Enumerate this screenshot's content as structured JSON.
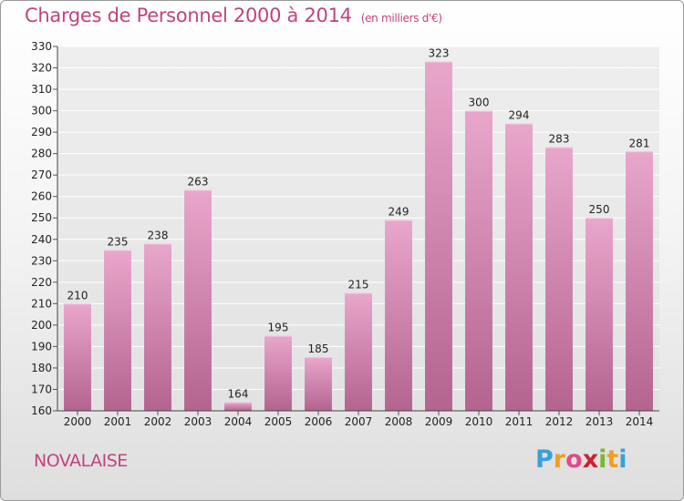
{
  "chart_data": {
    "type": "bar",
    "title": "Charges de Personnel 2000 à 2014",
    "subtitle": "(en milliers d'€)",
    "categories": [
      "2000",
      "2001",
      "2002",
      "2003",
      "2004",
      "2005",
      "2006",
      "2007",
      "2008",
      "2009",
      "2010",
      "2011",
      "2012",
      "2013",
      "2014"
    ],
    "values": [
      210,
      235,
      238,
      263,
      164,
      195,
      185,
      215,
      249,
      323,
      300,
      294,
      283,
      250,
      281
    ],
    "yticks": [
      160,
      170,
      180,
      190,
      200,
      210,
      220,
      230,
      240,
      250,
      260,
      270,
      280,
      290,
      300,
      310,
      320,
      330
    ],
    "ylim": [
      160,
      330
    ],
    "grid": true,
    "bar_color": "#d98ab3"
  },
  "footer": {
    "place_name": "NOVALAISE"
  },
  "logo": {
    "letters": [
      "P",
      "r",
      "o",
      "x",
      "i",
      "t",
      "i"
    ],
    "colors": [
      "#3aa0d8",
      "#f0a020",
      "#e04a8a",
      "#d0202e",
      "#7ab830",
      "#f0a020",
      "#3aa0d8"
    ]
  }
}
